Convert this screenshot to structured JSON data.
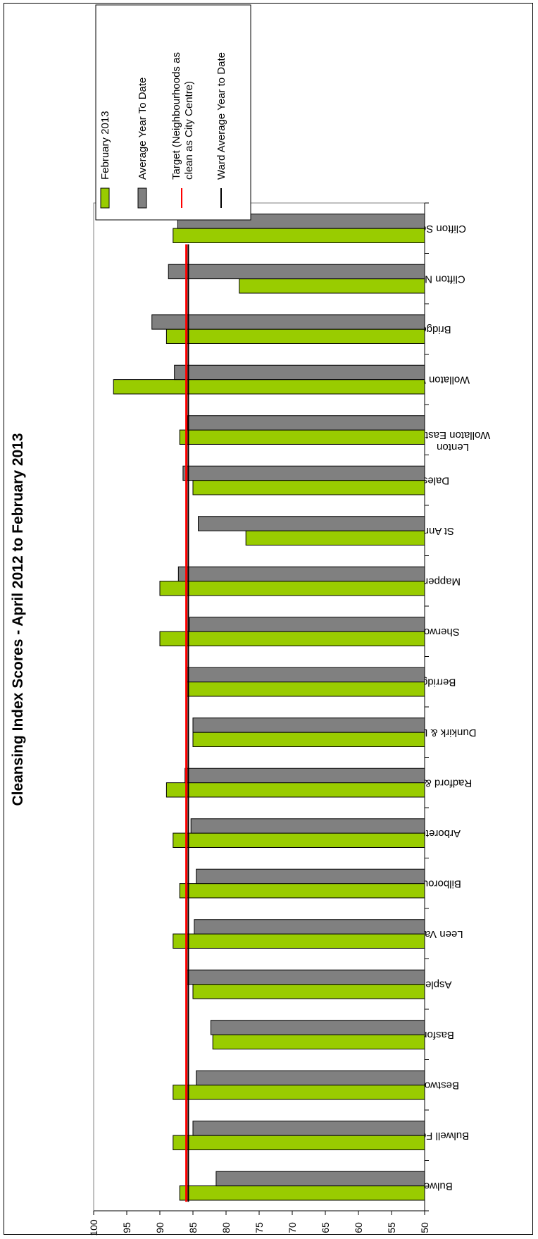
{
  "chart_data": {
    "type": "bar",
    "orientation": "horizontal-rotated",
    "title": "Cleansing Index Scores - April 2012 to February 2013",
    "xlabel": "",
    "ylabel": "",
    "ylim": [
      50,
      100
    ],
    "y_ticks": [
      "100",
      "95",
      "90",
      "85",
      "80",
      "75",
      "70",
      "65",
      "60",
      "55",
      "50"
    ],
    "grid": false,
    "legend_placement": "top-right",
    "categories": [
      "Bulwell",
      "Bulwell Forest",
      "Bestwood",
      "Basford",
      "Aspley",
      "Leen Valley",
      "Bilborough",
      "Arboretum",
      "Radford & Park",
      "Dunkirk & Lenton",
      "Berridge",
      "Sherwood",
      "Mapperley",
      "St Anns",
      "Dales",
      "Wollaton East & Lenton",
      "Wollaton West",
      "Bridge",
      "Clifton North",
      "Clifton South"
    ],
    "series": [
      {
        "name": "February 2013",
        "color": "#99cc00",
        "values": [
          87,
          88,
          88,
          82,
          85,
          88,
          87,
          88,
          89,
          85,
          86,
          90,
          90,
          77,
          85,
          87,
          97,
          89,
          78,
          88
        ]
      },
      {
        "name": "Average Year To Date",
        "color": "#808080",
        "values": [
          81.5,
          85,
          84.5,
          82.3,
          86,
          84.8,
          84.5,
          85.3,
          86.2,
          85,
          86,
          85.5,
          87.2,
          84.2,
          86.5,
          85.8,
          87.8,
          91.2,
          88.7,
          87.3
        ]
      }
    ],
    "lines": [
      {
        "name": "Target (Neighbourhoods as clean as City Centre)",
        "color": "#ff0000",
        "value": 86
      },
      {
        "name": "Ward Average Year to Date",
        "color": "#000000",
        "value": 85.7
      }
    ]
  }
}
